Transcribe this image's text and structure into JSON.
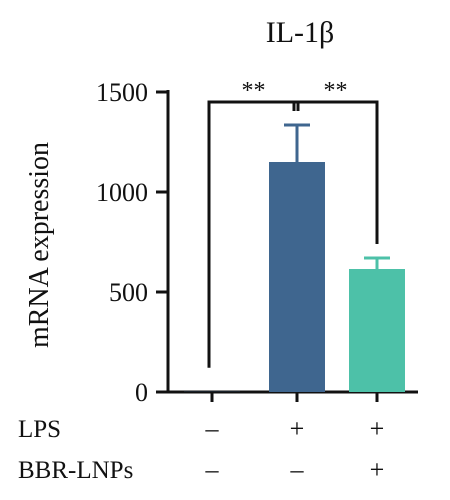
{
  "chart_data": {
    "type": "bar",
    "title": "IL-1β",
    "ylabel": "mRNA expression",
    "xlabel": "",
    "ylim": [
      0,
      1500
    ],
    "yticks": [
      0,
      500,
      1000,
      1500
    ],
    "ytick_labels": [
      "0",
      "500",
      "1000",
      "1500"
    ],
    "grid": false,
    "categories": [
      "– / –",
      "+ / –",
      "+ / +"
    ],
    "values": [
      1,
      1150,
      615
    ],
    "errors": [
      0,
      185,
      55
    ],
    "bar_colors": [
      "#3f668f",
      "#3f668f",
      "#4dc1a8"
    ],
    "condition_table": {
      "rows": [
        {
          "label": "LPS",
          "signs": [
            "–",
            "+",
            "+"
          ]
        },
        {
          "label": "BBR-LNPs",
          "signs": [
            "–",
            "–",
            "+"
          ]
        }
      ]
    },
    "significance": [
      {
        "from": 0,
        "to": 1,
        "label": "**"
      },
      {
        "from": 1,
        "to": 2,
        "label": "**"
      }
    ]
  }
}
